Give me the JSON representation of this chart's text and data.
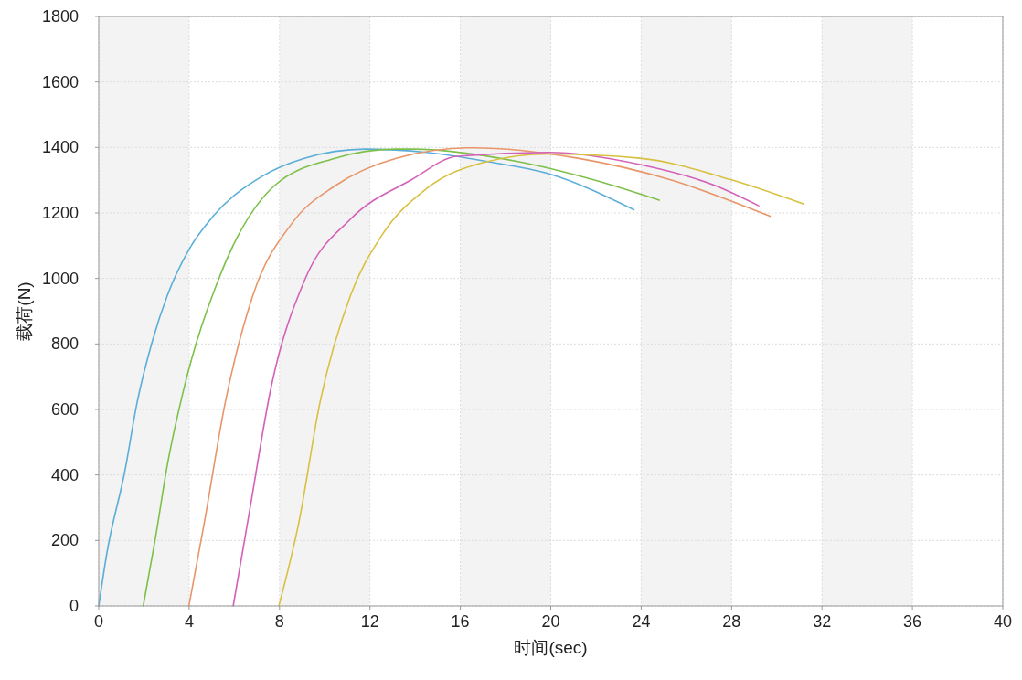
{
  "chart_data": {
    "type": "line",
    "xlabel": "时间(sec)",
    "ylabel": "载荷(N)",
    "xlim": [
      0,
      40
    ],
    "xticks": [
      0,
      4,
      8,
      12,
      16,
      20,
      24,
      28,
      32,
      36,
      40
    ],
    "ylim": [
      0,
      1800
    ],
    "yticks": [
      0,
      200,
      400,
      600,
      800,
      1000,
      1200,
      1400,
      1600,
      1800
    ],
    "grid": true,
    "marker": "none",
    "line_style": "solid",
    "bands": [
      {
        "axis": "x",
        "from": 0,
        "to": 4,
        "color": "#f3f3f3"
      },
      {
        "axis": "x",
        "from": 8,
        "to": 12,
        "color": "#f3f3f3"
      },
      {
        "axis": "x",
        "from": 16,
        "to": 20,
        "color": "#f3f3f3"
      },
      {
        "axis": "x",
        "from": 24,
        "to": 28,
        "color": "#f3f3f3"
      },
      {
        "axis": "x",
        "from": 32,
        "to": 36,
        "color": "#f3f3f3"
      }
    ],
    "series": [
      {
        "color": "#5aaed8",
        "x": [
          0,
          0.35,
          1.16,
          1.7,
          2.37,
          3.04,
          3.99,
          5.06,
          7.23,
          9.1,
          11.8,
          14.5,
          17.2,
          19.9,
          23.68
        ],
        "values": [
          0,
          157,
          413,
          622,
          808,
          949,
          1088,
          1190,
          1312,
          1367,
          1395,
          1385,
          1357,
          1320,
          1210
        ]
      },
      {
        "color": "#7cc04a",
        "x": [
          1.97,
          2.5,
          3.05,
          3.72,
          5.34,
          7.77,
          10.46,
          13.1,
          13.8,
          18.55,
          21.9,
          24.8
        ],
        "values": [
          0,
          204,
          436,
          650,
          1004,
          1283,
          1367,
          1395,
          1395,
          1357,
          1301,
          1239
        ]
      },
      {
        "color": "#e8956a",
        "x": [
          3.99,
          4.66,
          5.6,
          6.82,
          8.58,
          10.46,
          13.16,
          16.5,
          21.2,
          25.3,
          29.7
        ],
        "values": [
          0,
          250,
          622,
          948,
          1171,
          1283,
          1367,
          1399,
          1367,
          1301,
          1190
        ]
      },
      {
        "color": "#d460b8",
        "x": [
          5.95,
          6.69,
          7.63,
          9.11,
          11.14,
          13.83,
          15.86,
          19.9,
          23.95,
          27.3,
          29.2
        ],
        "values": [
          0,
          297,
          669,
          995,
          1181,
          1301,
          1373,
          1385,
          1348,
          1283,
          1222
        ]
      },
      {
        "color": "#d8c040",
        "x": [
          7.97,
          8.84,
          9.79,
          11.14,
          12.5,
          14.5,
          17.2,
          19.9,
          23.95,
          28,
          31.2
        ],
        "values": [
          0,
          250,
          622,
          948,
          1129,
          1274,
          1357,
          1380,
          1367,
          1301,
          1227
        ]
      }
    ]
  }
}
